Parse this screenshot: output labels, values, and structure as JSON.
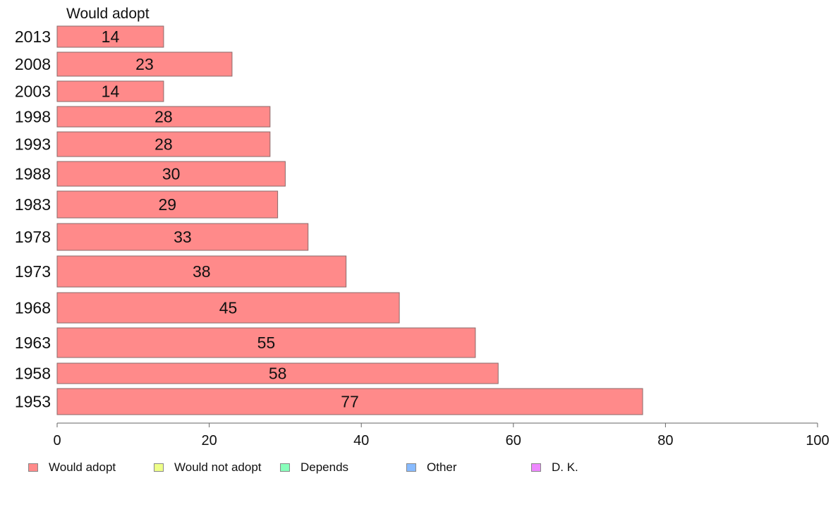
{
  "chart_data": {
    "type": "bar",
    "orientation": "horizontal",
    "title": "Would adopt",
    "categories": [
      "2013",
      "2008",
      "2003",
      "1998",
      "1993",
      "1988",
      "1983",
      "1978",
      "1973",
      "1968",
      "1963",
      "1958",
      "1953"
    ],
    "series": [
      {
        "name": "Would adopt",
        "values": [
          14,
          23,
          14,
          28,
          28,
          30,
          29,
          33,
          38,
          45,
          55,
          58,
          77
        ],
        "color": "#ff8a8a"
      }
    ],
    "xlim": [
      0,
      100
    ],
    "xticks": [
      0,
      20,
      40,
      60,
      80,
      100
    ],
    "grid": false,
    "legend": {
      "position": "bottom",
      "entries": [
        {
          "label": "Would adopt",
          "color": "#ff8a8a"
        },
        {
          "label": "Would not adopt",
          "color": "#eeff88"
        },
        {
          "label": "Depends",
          "color": "#88ffbb"
        },
        {
          "label": "Other",
          "color": "#88bbff"
        },
        {
          "label": "D. K.",
          "color": "#ee88ff"
        }
      ]
    }
  }
}
